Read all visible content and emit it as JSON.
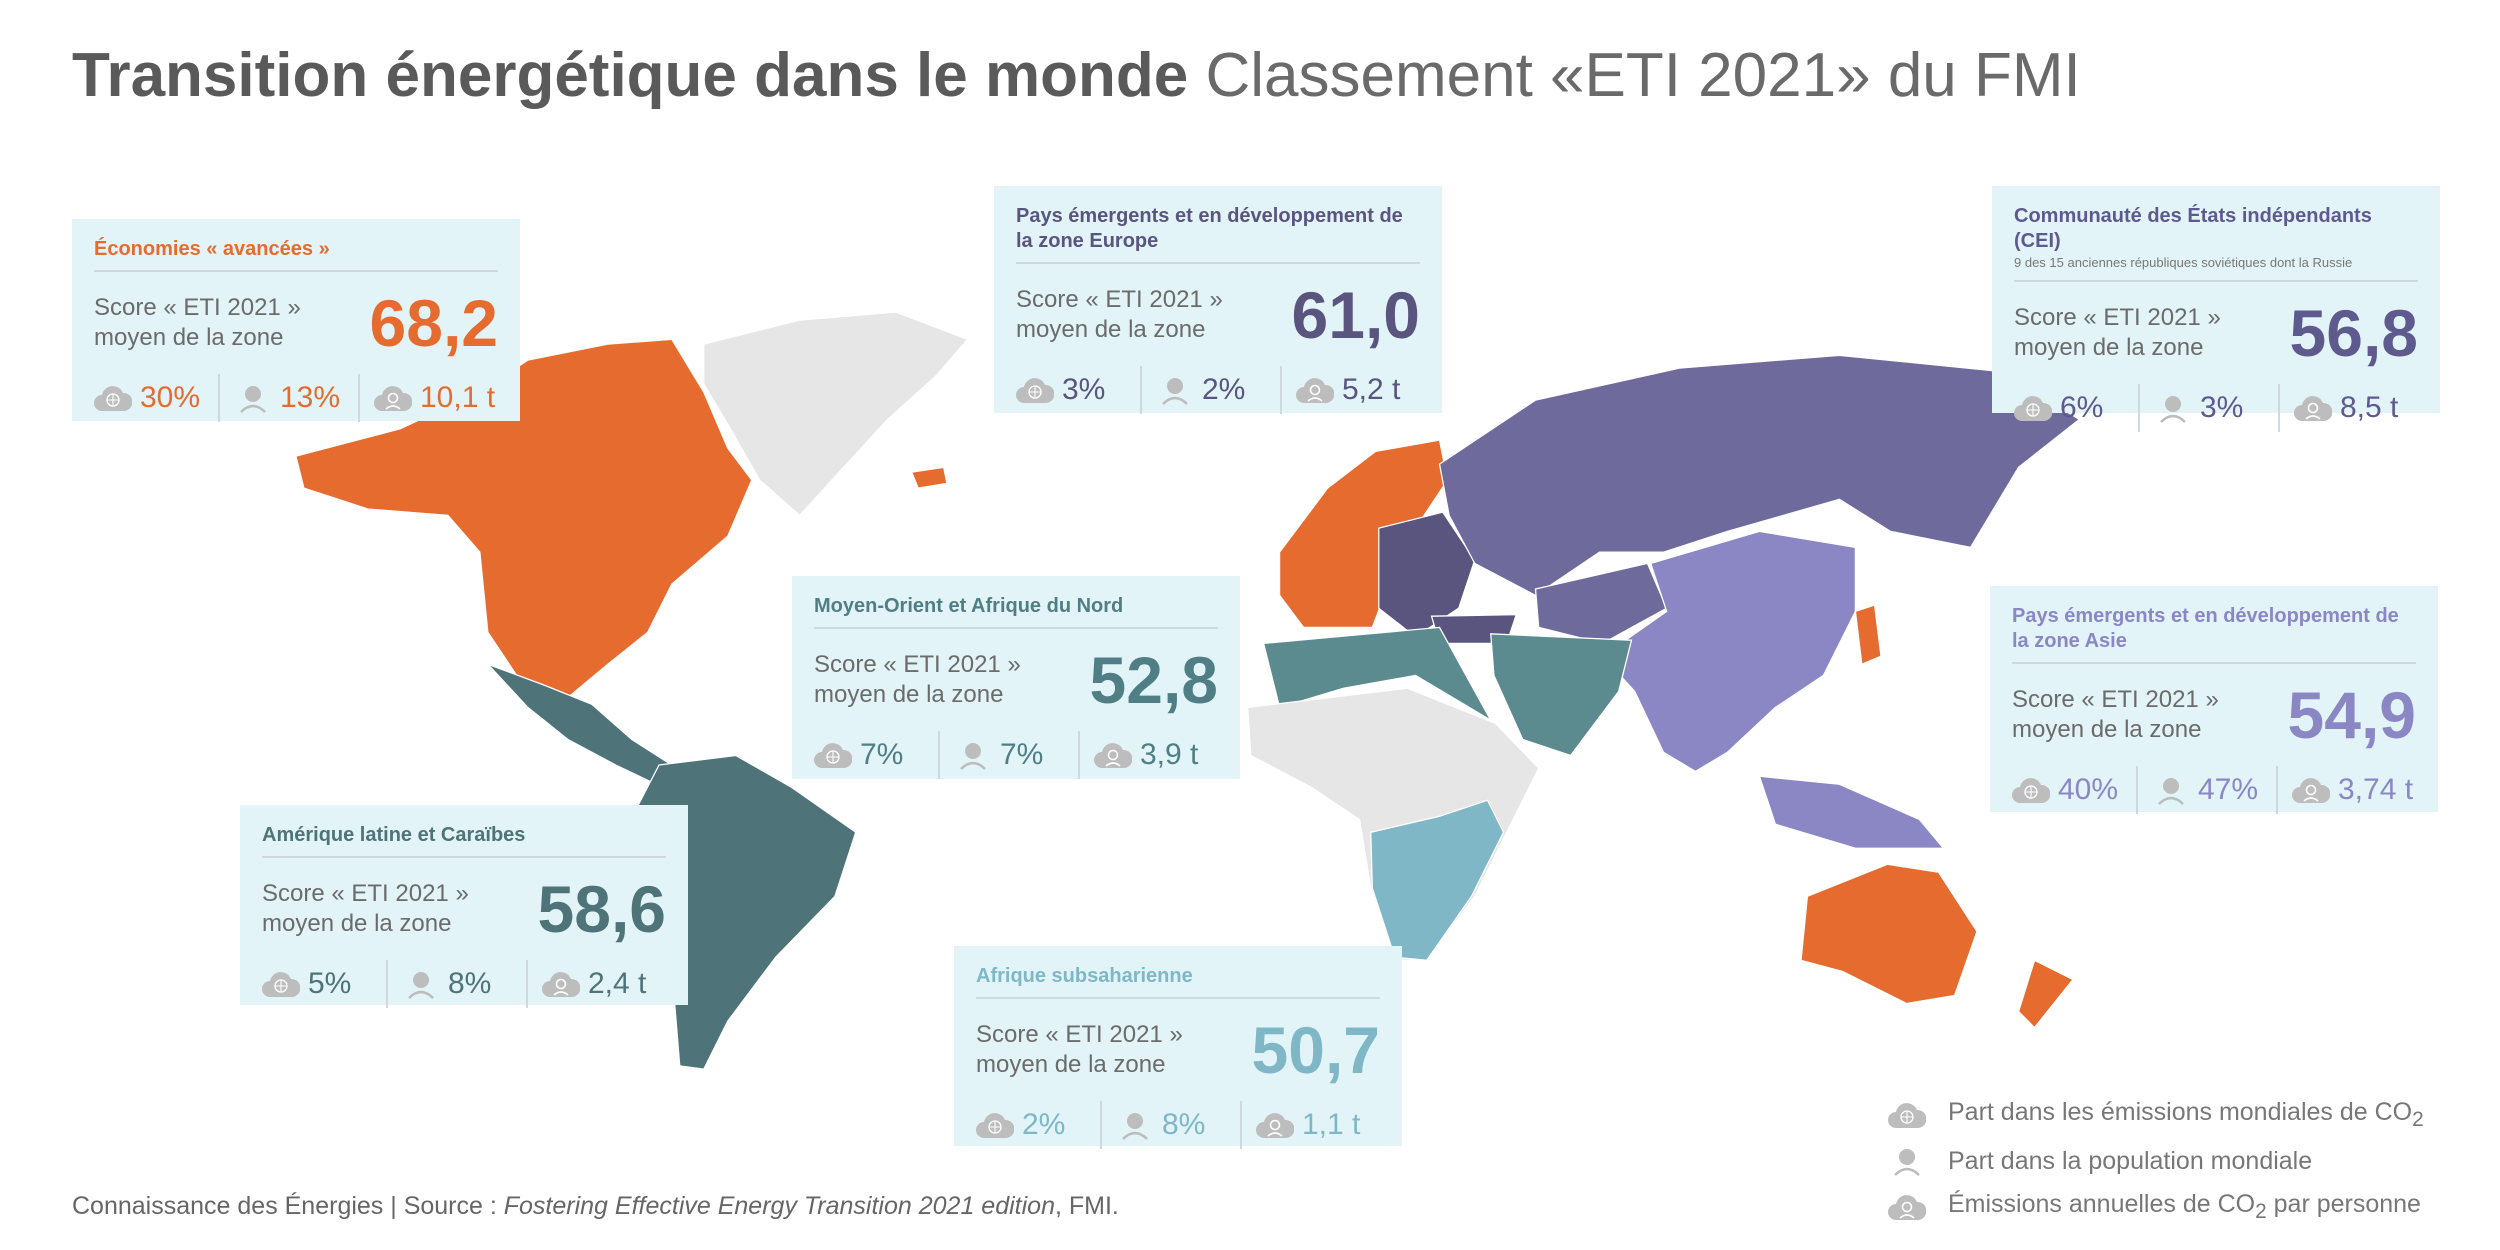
{
  "title": {
    "bold": "Transition énergétique dans le monde",
    "light": "Classement «ETI 2021» du FMI"
  },
  "colors": {
    "advanced": "#e56b2f",
    "europe": "#59557f",
    "cei": "#6f6a9c",
    "asia": "#8b87c5",
    "mena": "#5b8a8f",
    "latam": "#4e7378",
    "ssa": "#7fb7c6",
    "card_bg": "#e2f4f7",
    "other": "#e6e6e6"
  },
  "score_label_1": "Score « ETI 2021 »",
  "score_label_2": "moyen de la zone",
  "zones": [
    {
      "key": "advanced",
      "title": "Économies « avancées »",
      "subtitle": "",
      "score": "68,2",
      "co2_share": "30%",
      "pop_share": "13%",
      "co2_per_capita": "10,1 t",
      "color": "#e56b2f"
    },
    {
      "key": "europe",
      "title": "Pays émergents et en développement de la zone Europe",
      "subtitle": "",
      "score": "61,0",
      "co2_share": "3%",
      "pop_share": "2%",
      "co2_per_capita": "5,2 t",
      "color": "#59557f"
    },
    {
      "key": "cei",
      "title": "Communauté des États indépendants (CEI)",
      "subtitle": "9 des 15 anciennes républiques soviétiques dont la Russie",
      "score": "56,8",
      "co2_share": "6%",
      "pop_share": "3%",
      "co2_per_capita": "8,5 t",
      "color": "#5f5a8e"
    },
    {
      "key": "mena",
      "title": "Moyen-Orient et Afrique du Nord",
      "subtitle": "",
      "score": "52,8",
      "co2_share": "7%",
      "pop_share": "7%",
      "co2_per_capita": "3,9 t",
      "color": "#4f7f85"
    },
    {
      "key": "asia",
      "title": "Pays émergents et en développement de la zone Asie",
      "subtitle": "",
      "score": "54,9",
      "co2_share": "40%",
      "pop_share": "47%",
      "co2_per_capita": "3,74 t",
      "color": "#8b87c5"
    },
    {
      "key": "latam",
      "title": "Amérique latine et Caraïbes",
      "subtitle": "",
      "score": "58,6",
      "co2_share": "5%",
      "pop_share": "8%",
      "co2_per_capita": "2,4 t",
      "color": "#4e7378"
    },
    {
      "key": "ssa",
      "title": "Afrique subsaharienne",
      "subtitle": "",
      "score": "50,7",
      "co2_share": "2%",
      "pop_share": "8%",
      "co2_per_capita": "1,1 t",
      "color": "#7fb7c6"
    }
  ],
  "legend": {
    "co2_share": "Part dans les émissions mondiales de CO",
    "pop_share": "Part dans la population mondiale",
    "co2_per_capita_pre": "Émissions annuelles de CO",
    "co2_per_capita_post": " par personne",
    "sub2": "2"
  },
  "footer": {
    "pre": "Connaissance des Énergies | Source : ",
    "italic": "Fostering Effective Energy Transition 2021 edition",
    "post": ", FMI."
  }
}
